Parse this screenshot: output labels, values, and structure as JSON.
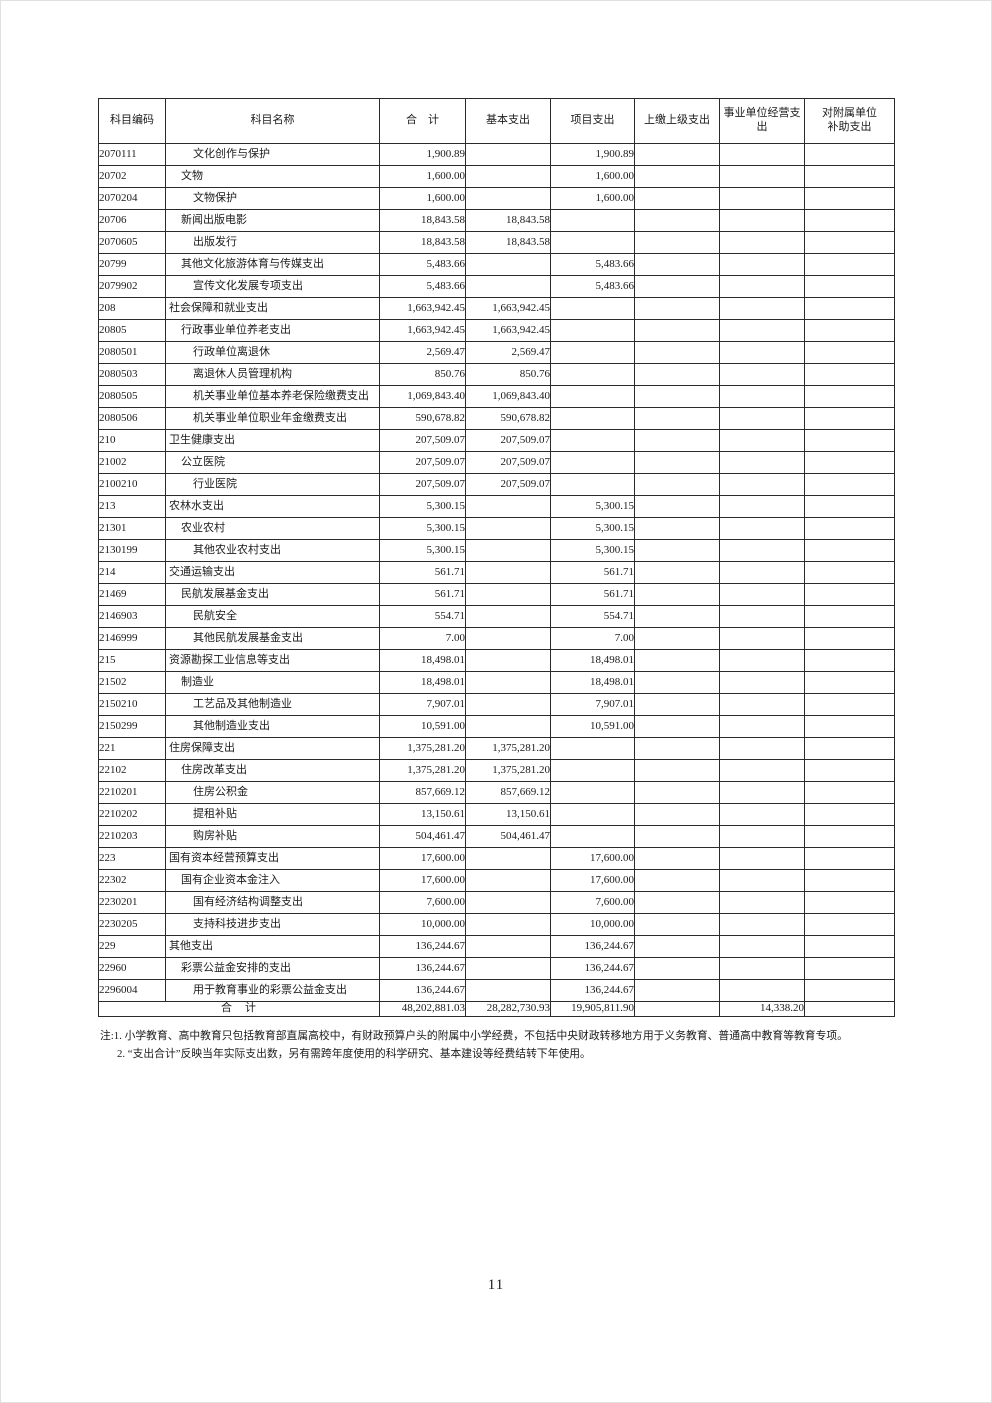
{
  "page_number": "11",
  "colors": {
    "background": "#ffffff",
    "border": "#2b2b2b",
    "text": "#1b1b1b"
  },
  "table": {
    "headers": [
      "科目编码",
      "科目名称",
      "合　计",
      "基本支出",
      "项目支出",
      "上缴上级支出",
      "事业单位经营支\n出",
      "对附属单位\n补助支出"
    ],
    "row_columns": [
      "code",
      "name",
      "level",
      "total",
      "basic",
      "project",
      "upper",
      "operating",
      "subsidy"
    ],
    "rows": [
      [
        "2070111",
        "文化创作与保护",
        3,
        "1,900.89",
        "",
        "1,900.89",
        "",
        "",
        ""
      ],
      [
        "20702",
        "文物",
        2,
        "1,600.00",
        "",
        "1,600.00",
        "",
        "",
        ""
      ],
      [
        "2070204",
        "文物保护",
        3,
        "1,600.00",
        "",
        "1,600.00",
        "",
        "",
        ""
      ],
      [
        "20706",
        "新闻出版电影",
        2,
        "18,843.58",
        "18,843.58",
        "",
        "",
        "",
        ""
      ],
      [
        "2070605",
        "出版发行",
        3,
        "18,843.58",
        "18,843.58",
        "",
        "",
        "",
        ""
      ],
      [
        "20799",
        "其他文化旅游体育与传媒支出",
        2,
        "5,483.66",
        "",
        "5,483.66",
        "",
        "",
        ""
      ],
      [
        "2079902",
        "宣传文化发展专项支出",
        3,
        "5,483.66",
        "",
        "5,483.66",
        "",
        "",
        ""
      ],
      [
        "208",
        "社会保障和就业支出",
        1,
        "1,663,942.45",
        "1,663,942.45",
        "",
        "",
        "",
        ""
      ],
      [
        "20805",
        "行政事业单位养老支出",
        2,
        "1,663,942.45",
        "1,663,942.45",
        "",
        "",
        "",
        ""
      ],
      [
        "2080501",
        "行政单位离退休",
        3,
        "2,569.47",
        "2,569.47",
        "",
        "",
        "",
        ""
      ],
      [
        "2080503",
        "离退休人员管理机构",
        3,
        "850.76",
        "850.76",
        "",
        "",
        "",
        ""
      ],
      [
        "2080505",
        "机关事业单位基本养老保险缴费支出",
        3,
        "1,069,843.40",
        "1,069,843.40",
        "",
        "",
        "",
        ""
      ],
      [
        "2080506",
        "机关事业单位职业年金缴费支出",
        3,
        "590,678.82",
        "590,678.82",
        "",
        "",
        "",
        ""
      ],
      [
        "210",
        "卫生健康支出",
        1,
        "207,509.07",
        "207,509.07",
        "",
        "",
        "",
        ""
      ],
      [
        "21002",
        "公立医院",
        2,
        "207,509.07",
        "207,509.07",
        "",
        "",
        "",
        ""
      ],
      [
        "2100210",
        "行业医院",
        3,
        "207,509.07",
        "207,509.07",
        "",
        "",
        "",
        ""
      ],
      [
        "213",
        "农林水支出",
        1,
        "5,300.15",
        "",
        "5,300.15",
        "",
        "",
        ""
      ],
      [
        "21301",
        "农业农村",
        2,
        "5,300.15",
        "",
        "5,300.15",
        "",
        "",
        ""
      ],
      [
        "2130199",
        "其他农业农村支出",
        3,
        "5,300.15",
        "",
        "5,300.15",
        "",
        "",
        ""
      ],
      [
        "214",
        "交通运输支出",
        1,
        "561.71",
        "",
        "561.71",
        "",
        "",
        ""
      ],
      [
        "21469",
        "民航发展基金支出",
        2,
        "561.71",
        "",
        "561.71",
        "",
        "",
        ""
      ],
      [
        "2146903",
        "民航安全",
        3,
        "554.71",
        "",
        "554.71",
        "",
        "",
        ""
      ],
      [
        "2146999",
        "其他民航发展基金支出",
        3,
        "7.00",
        "",
        "7.00",
        "",
        "",
        ""
      ],
      [
        "215",
        "资源勘探工业信息等支出",
        1,
        "18,498.01",
        "",
        "18,498.01",
        "",
        "",
        ""
      ],
      [
        "21502",
        "制造业",
        2,
        "18,498.01",
        "",
        "18,498.01",
        "",
        "",
        ""
      ],
      [
        "2150210",
        "工艺品及其他制造业",
        3,
        "7,907.01",
        "",
        "7,907.01",
        "",
        "",
        ""
      ],
      [
        "2150299",
        "其他制造业支出",
        3,
        "10,591.00",
        "",
        "10,591.00",
        "",
        "",
        ""
      ],
      [
        "221",
        "住房保障支出",
        1,
        "1,375,281.20",
        "1,375,281.20",
        "",
        "",
        "",
        ""
      ],
      [
        "22102",
        "住房改革支出",
        2,
        "1,375,281.20",
        "1,375,281.20",
        "",
        "",
        "",
        ""
      ],
      [
        "2210201",
        "住房公积金",
        3,
        "857,669.12",
        "857,669.12",
        "",
        "",
        "",
        ""
      ],
      [
        "2210202",
        "提租补贴",
        3,
        "13,150.61",
        "13,150.61",
        "",
        "",
        "",
        ""
      ],
      [
        "2210203",
        "购房补贴",
        3,
        "504,461.47",
        "504,461.47",
        "",
        "",
        "",
        ""
      ],
      [
        "223",
        "国有资本经营预算支出",
        1,
        "17,600.00",
        "",
        "17,600.00",
        "",
        "",
        ""
      ],
      [
        "22302",
        "国有企业资本金注入",
        2,
        "17,600.00",
        "",
        "17,600.00",
        "",
        "",
        ""
      ],
      [
        "2230201",
        "国有经济结构调整支出",
        3,
        "7,600.00",
        "",
        "7,600.00",
        "",
        "",
        ""
      ],
      [
        "2230205",
        "支持科技进步支出",
        3,
        "10,000.00",
        "",
        "10,000.00",
        "",
        "",
        ""
      ],
      [
        "229",
        "其他支出",
        1,
        "136,244.67",
        "",
        "136,244.67",
        "",
        "",
        ""
      ],
      [
        "22960",
        "彩票公益金安排的支出",
        2,
        "136,244.67",
        "",
        "136,244.67",
        "",
        "",
        ""
      ],
      [
        "2296004",
        "用于教育事业的彩票公益金支出",
        3,
        "136,244.67",
        "",
        "136,244.67",
        "",
        "",
        ""
      ]
    ],
    "total_row": {
      "label": "合　计",
      "total": "48,202,881.03",
      "basic": "28,282,730.93",
      "project": "19,905,811.90",
      "upper": "",
      "operating": "14,338.20",
      "subsidy": ""
    }
  },
  "notes": [
    "注:1. 小学教育、高中教育只包括教育部直属高校中，有财政预算户头的附属中小学经费，不包括中央财政转移地方用于义务教育、普通高中教育等教育专项。",
    "2. “支出合计”反映当年实际支出数，另有需跨年度使用的科学研究、基本建设等经费结转下年使用。"
  ]
}
